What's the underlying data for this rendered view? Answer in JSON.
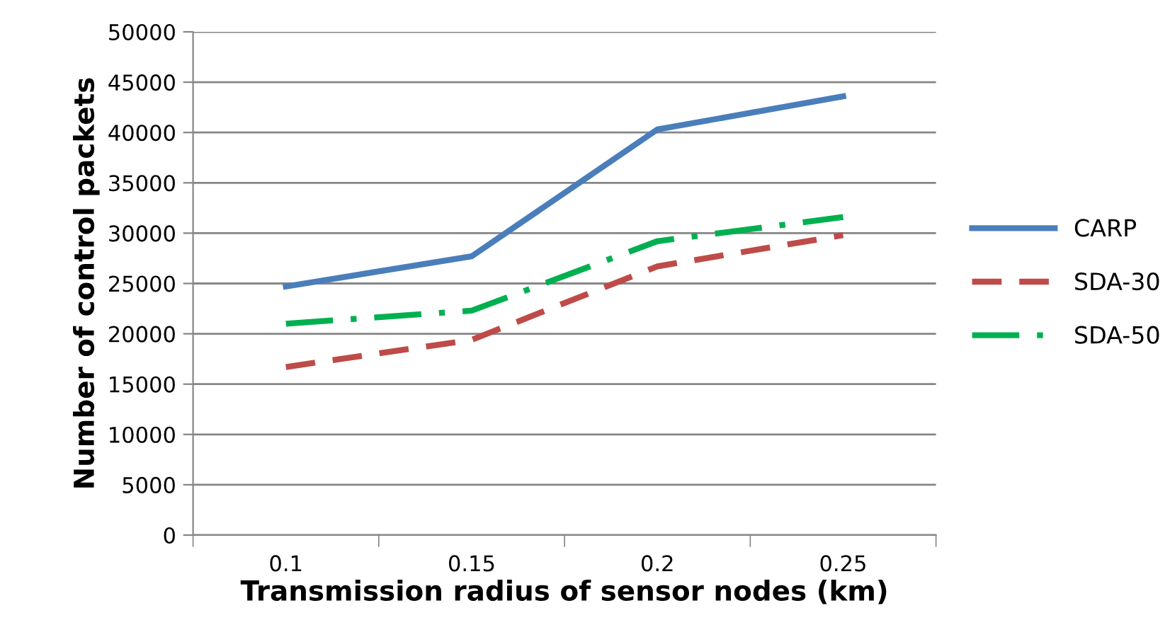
{
  "chart_data": {
    "type": "line",
    "xlabel": "Transmission radius of sensor nodes (km)",
    "ylabel": "Number of control packets",
    "categories": [
      "0.1",
      "0.15",
      "0.2",
      "0.25"
    ],
    "series": [
      {
        "name": "CARP",
        "color": "#4a7ebb",
        "values": [
          24700,
          27700,
          40300,
          43600
        ],
        "line_style": "solid"
      },
      {
        "name": "SDA-30",
        "color": "#be4b48",
        "values": [
          16700,
          19400,
          26700,
          29800
        ],
        "line_style": "dashed"
      },
      {
        "name": "SDA-50",
        "color": "#00b050",
        "values": [
          21000,
          22300,
          29200,
          31600
        ],
        "line_style": "dashdot"
      }
    ],
    "ylim": [
      0,
      50000
    ],
    "yticks": [
      0,
      5000,
      10000,
      15000,
      20000,
      25000,
      30000,
      35000,
      40000,
      45000,
      50000
    ],
    "grid": "y",
    "legend": "right",
    "marker": "none"
  }
}
